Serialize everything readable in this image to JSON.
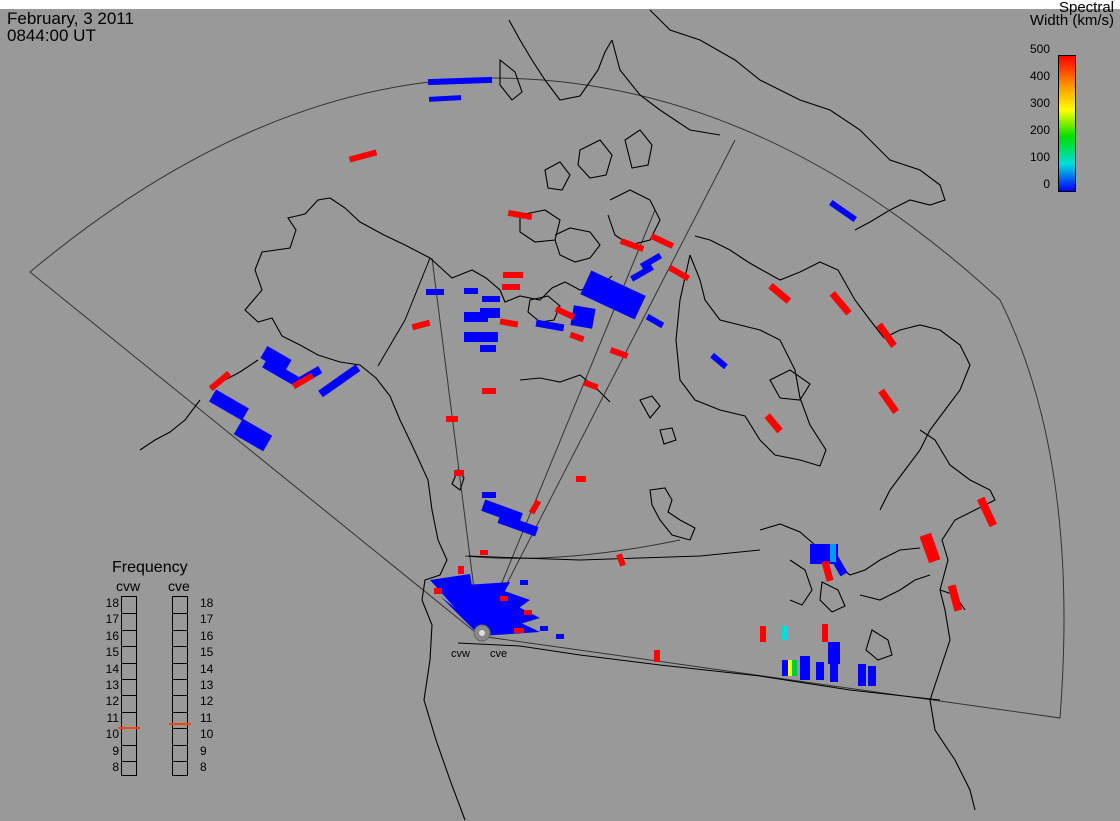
{
  "timestamp": {
    "date": "February, 3 2011",
    "time": "0844:00 UT"
  },
  "colorbar": {
    "title_line1": "Spectral",
    "title_line2": "Width (km/s)",
    "ticks": [
      "500",
      "400",
      "300",
      "200",
      "100",
      "0"
    ],
    "stops": [
      "#ff0000",
      "#ff8800",
      "#ffff00",
      "#00dd00",
      "#00dddd",
      "#0000ff"
    ]
  },
  "frequency": {
    "title": "Frequency",
    "radars": [
      "cvw",
      "cve"
    ],
    "labels": [
      "18",
      "17",
      "16",
      "15",
      "14",
      "13",
      "12",
      "11",
      "10",
      "9",
      "8"
    ],
    "cvw_mhz": 10.6,
    "cve_mhz": 10.8,
    "marker_color": "#ff4400"
  },
  "sites": {
    "west": "cvw",
    "east": "cve"
  },
  "colors": {
    "background": "#999999",
    "low_width": "#0000ff",
    "high_width": "#ff0000"
  }
}
